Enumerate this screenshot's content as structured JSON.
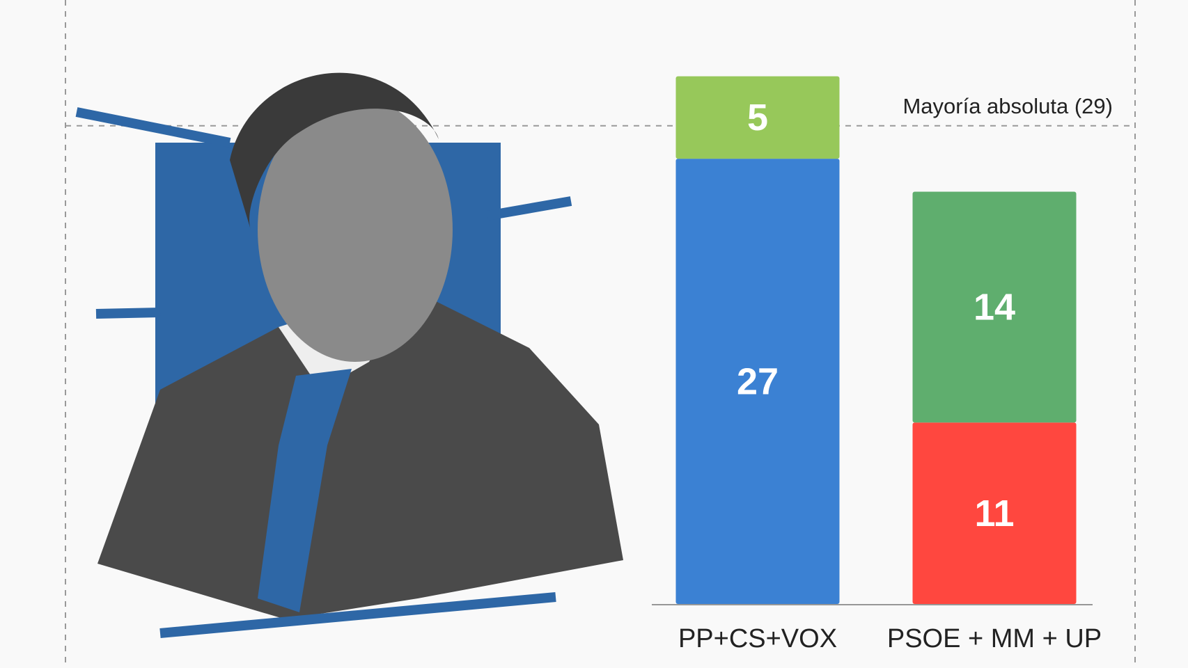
{
  "chart_data": {
    "type": "stacked-bar",
    "annotation": {
      "text": "Mayoría absoluta (29)",
      "value": 29
    },
    "categories": [
      "PP+CS+VOX",
      "PSOE + MM + UP"
    ],
    "series": [
      {
        "color": "#3b81d3",
        "values": [
          27,
          null
        ]
      },
      {
        "color": "#97c85a",
        "values": [
          5,
          null
        ]
      },
      {
        "color": "#ff473f",
        "values": [
          null,
          11
        ]
      },
      {
        "color": "#5fae6e",
        "values": [
          null,
          14
        ]
      }
    ]
  }
}
